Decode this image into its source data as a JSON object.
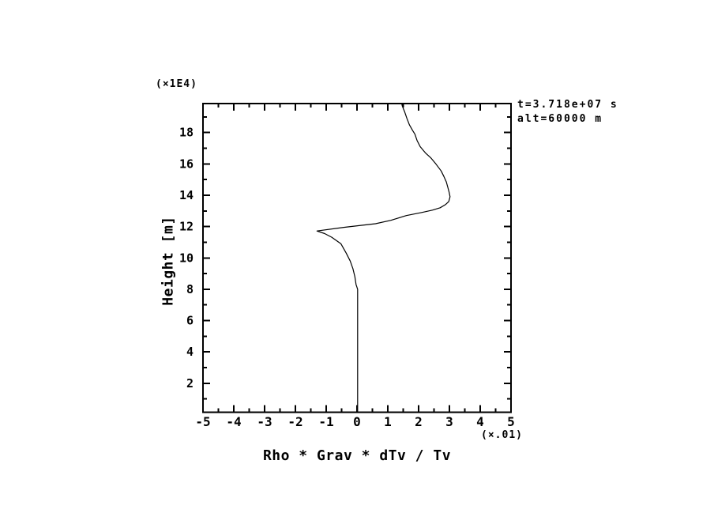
{
  "annotations": {
    "line1": "t=3.718e+07 s",
    "line2": "alt=60000 m"
  },
  "chart_data": {
    "type": "line",
    "title": "",
    "xlabel": "Rho * Grav * dTv / Tv",
    "ylabel": "Height [m]",
    "x_scale_note": "(×.01)",
    "y_scale_note": "(×1E4)",
    "x_units_multiplier": 0.01,
    "y_units_multiplier": 10000,
    "xlim": [
      -5,
      5
    ],
    "ylim": [
      0.15,
      19.85
    ],
    "grid": false,
    "legend": "none",
    "line_color": "#000000",
    "background_color": "#ffffff",
    "xticks_major": [
      -5,
      -4,
      -3,
      -2,
      -1,
      0,
      1,
      2,
      3,
      4,
      5
    ],
    "xtick_labels": [
      "-5",
      "-4",
      "-3",
      "-2",
      "-1",
      "0",
      "1",
      "2",
      "3",
      "4",
      "5"
    ],
    "xticks_minor": [
      -4.5,
      -3.5,
      -2.5,
      -1.5,
      -0.5,
      0.5,
      1.5,
      2.5,
      3.5,
      4.5
    ],
    "yticks_major": [
      2,
      4,
      6,
      8,
      10,
      12,
      14,
      16,
      18
    ],
    "ytick_labels": [
      "2",
      "4",
      "6",
      "8",
      "10",
      "12",
      "14",
      "16",
      "18"
    ],
    "yticks_minor": [
      1,
      3,
      5,
      7,
      9,
      11,
      13,
      15,
      17,
      19
    ],
    "series": [
      {
        "name": "rho-grav-dTv-over-Tv-profile",
        "points": [
          [
            0.02,
            0.15
          ],
          [
            0.02,
            3.0
          ],
          [
            0.02,
            6.0
          ],
          [
            0.02,
            8.0
          ],
          [
            -0.03,
            8.3
          ],
          [
            -0.07,
            8.8
          ],
          [
            -0.13,
            9.3
          ],
          [
            -0.22,
            9.8
          ],
          [
            -0.35,
            10.3
          ],
          [
            -0.52,
            10.9
          ],
          [
            -0.82,
            11.32
          ],
          [
            -1.05,
            11.55
          ],
          [
            -1.3,
            11.72
          ],
          [
            -0.43,
            11.95
          ],
          [
            0.6,
            12.18
          ],
          [
            1.1,
            12.4
          ],
          [
            1.6,
            12.7
          ],
          [
            2.1,
            12.9
          ],
          [
            2.45,
            13.05
          ],
          [
            2.7,
            13.2
          ],
          [
            2.87,
            13.4
          ],
          [
            2.98,
            13.6
          ],
          [
            3.02,
            13.9
          ],
          [
            2.99,
            14.2
          ],
          [
            2.95,
            14.5
          ],
          [
            2.9,
            14.85
          ],
          [
            2.82,
            15.2
          ],
          [
            2.73,
            15.55
          ],
          [
            2.56,
            16.0
          ],
          [
            2.39,
            16.4
          ],
          [
            2.22,
            16.7
          ],
          [
            2.05,
            17.1
          ],
          [
            1.95,
            17.5
          ],
          [
            1.88,
            17.9
          ],
          [
            1.8,
            18.15
          ],
          [
            1.7,
            18.5
          ],
          [
            1.62,
            18.9
          ],
          [
            1.55,
            19.3
          ],
          [
            1.47,
            19.7
          ],
          [
            1.45,
            19.85
          ]
        ]
      }
    ]
  }
}
